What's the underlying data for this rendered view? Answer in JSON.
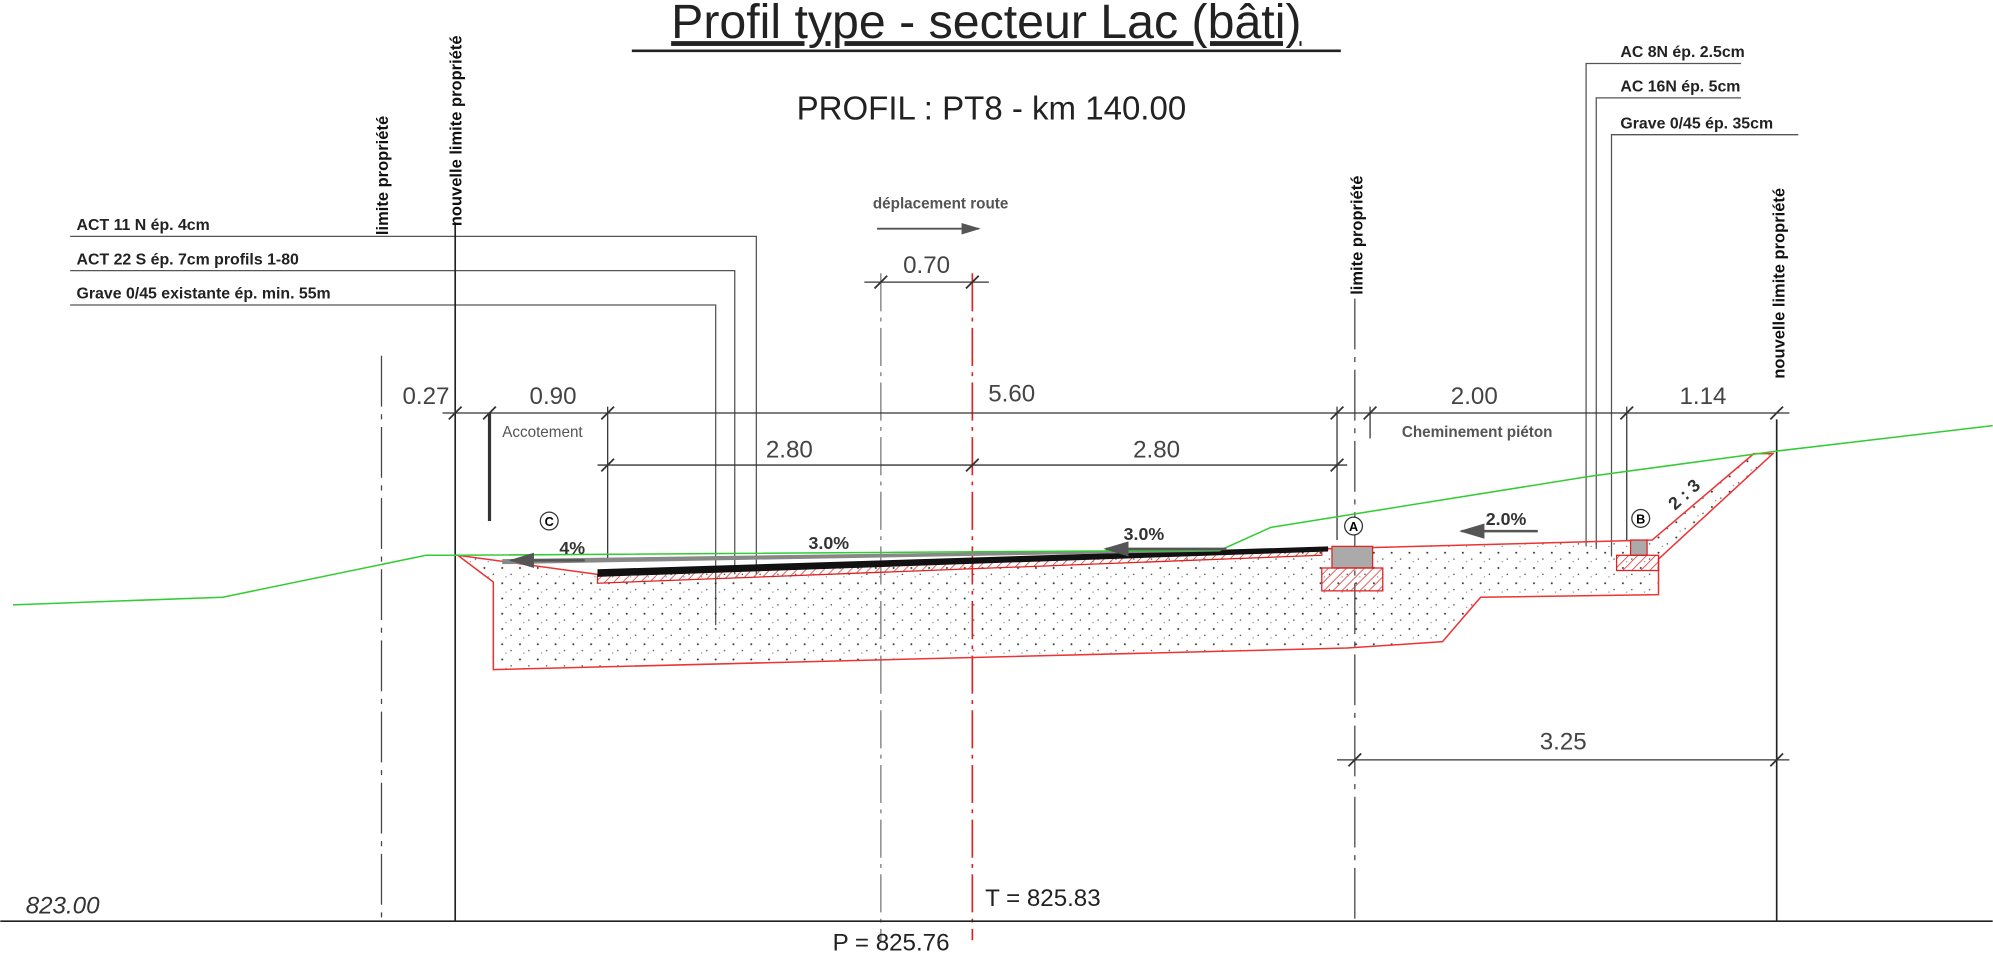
{
  "header": {
    "title": "Profil type - secteur Lac (bâti)",
    "subtitle": "PROFIL : PT8 - km 140.00"
  },
  "layers_left": [
    "ACT 11 N ép. 4cm",
    "ACT 22 S ép. 7cm profils 1-80",
    "Grave 0/45 existante ép. min. 55m"
  ],
  "layers_right": [
    "AC 8N ép. 2.5cm",
    "AC 16N ép. 5cm",
    "Grave 0/45 ép. 35cm"
  ],
  "property_lines": [
    "limite propriété",
    "nouvelle limite propriété",
    "limite propriété",
    "nouvelle limite propriété"
  ],
  "shift": "déplacement route",
  "dimensions": {
    "shift": "0.70",
    "left_margin": "0.27",
    "shoulder": "0.90",
    "road": "5.60",
    "sidewalk": "2.00",
    "right_margin": "1.14",
    "lane_left": "2.80",
    "lane_right": "2.80",
    "bottom": "3.25"
  },
  "zones": {
    "shoulder": "Accotement",
    "sidewalk": "Cheminement piéton"
  },
  "slopes": {
    "shoulder": "4%",
    "lane_left": "3.0%",
    "lane_right": "3.0%",
    "sidewalk": "2.0%",
    "embankment": "2 : 3"
  },
  "markers": [
    "C",
    "A",
    "B"
  ],
  "levels": {
    "reference": "823.00",
    "T": "T = 825.83",
    "P": "P = 825.76"
  }
}
